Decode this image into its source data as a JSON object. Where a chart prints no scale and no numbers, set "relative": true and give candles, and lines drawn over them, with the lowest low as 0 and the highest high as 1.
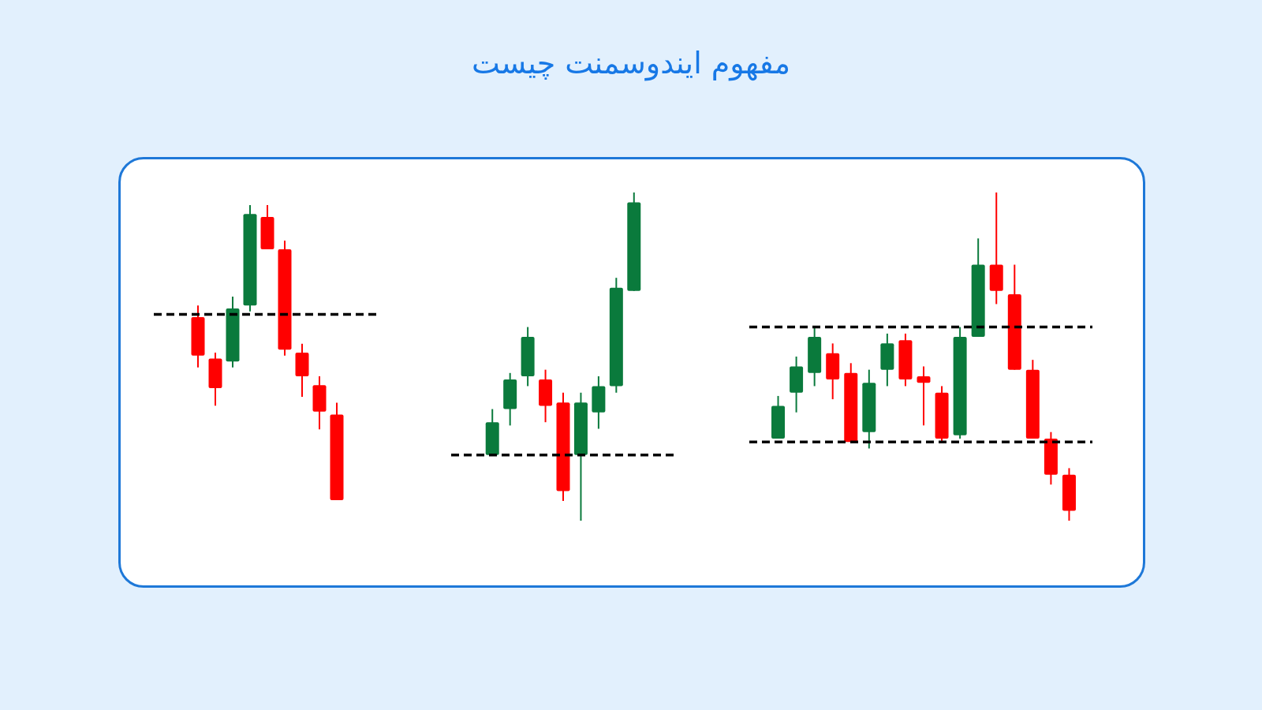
{
  "chart_data": [
    {
      "type": "other",
      "title": "مفهوم ایندوسمنت چیست"
    },
    {
      "type": "candlestick",
      "relative": true,
      "categories": [
        null,
        null,
        null,
        null,
        null,
        null,
        null,
        null,
        null
      ],
      "ohlc": [
        [
          0.62,
          0.66,
          0.45,
          0.49
        ],
        [
          0.48,
          0.5,
          0.32,
          0.38
        ],
        [
          0.47,
          0.69,
          0.45,
          0.65
        ],
        [
          0.66,
          1,
          0.64,
          0.97
        ],
        [
          0.96,
          1,
          0.85,
          0.85
        ],
        [
          0.85,
          0.88,
          0.49,
          0.51
        ],
        [
          0.5,
          0.53,
          0.35,
          0.42
        ],
        [
          0.39,
          0.42,
          0.24,
          0.3
        ],
        [
          0.29,
          0.33,
          0,
          0
        ]
      ],
      "colors": [
        "#ff0000",
        "#ff0000",
        "#0a7a3c",
        "#0a7a3c",
        "#ff0000",
        "#ff0000",
        "#ff0000",
        "#ff0000",
        "#ff0000"
      ],
      "ref_lines": [
        {
          "axis": "y",
          "value": 0.63,
          "color": "#000000",
          "line_style": "dashed"
        }
      ]
    },
    {
      "type": "candlestick",
      "relative": true,
      "categories": [
        null,
        null,
        null,
        null,
        null,
        null,
        null,
        null,
        null
      ],
      "ohlc": [
        [
          0.2,
          0.34,
          0.2,
          0.3
        ],
        [
          0.34,
          0.45,
          0.29,
          0.43
        ],
        [
          0.44,
          0.59,
          0.41,
          0.56
        ],
        [
          0.43,
          0.46,
          0.3,
          0.35
        ],
        [
          0.36,
          0.39,
          0.06,
          0.09
        ],
        [
          0.2,
          0.39,
          0,
          0.36
        ],
        [
          0.33,
          0.44,
          0.28,
          0.41
        ],
        [
          0.41,
          0.74,
          0.39,
          0.71
        ],
        [
          0.7,
          1,
          0.7,
          0.97
        ]
      ],
      "colors": [
        "#0a7a3c",
        "#0a7a3c",
        "#0a7a3c",
        "#ff0000",
        "#ff0000",
        "#0a7a3c",
        "#0a7a3c",
        "#0a7a3c",
        "#0a7a3c"
      ],
      "ref_lines": [
        {
          "axis": "y",
          "value": 0.2,
          "color": "#000000",
          "line_style": "dashed"
        }
      ]
    },
    {
      "type": "candlestick",
      "relative": true,
      "categories": [
        null,
        null,
        null,
        null,
        null,
        null,
        null,
        null,
        null,
        null,
        null,
        null,
        null,
        null,
        null,
        null,
        null
      ],
      "ohlc": [
        [
          0.25,
          0.38,
          0.25,
          0.35
        ],
        [
          0.39,
          0.5,
          0.33,
          0.47
        ],
        [
          0.45,
          0.59,
          0.41,
          0.56
        ],
        [
          0.51,
          0.54,
          0.37,
          0.43
        ],
        [
          0.45,
          0.48,
          0.24,
          0.24
        ],
        [
          0.27,
          0.46,
          0.22,
          0.42
        ],
        [
          0.46,
          0.57,
          0.41,
          0.54
        ],
        [
          0.55,
          0.57,
          0.41,
          0.43
        ],
        [
          0.44,
          0.47,
          0.29,
          0.42
        ],
        [
          0.39,
          0.41,
          0.24,
          0.25
        ],
        [
          0.26,
          0.59,
          0.25,
          0.56
        ],
        [
          0.56,
          0.86,
          0.56,
          0.78
        ],
        [
          0.78,
          1,
          0.66,
          0.7
        ],
        [
          0.69,
          0.78,
          0.46,
          0.46
        ],
        [
          0.46,
          0.49,
          0.25,
          0.25
        ],
        [
          0.25,
          0.27,
          0.11,
          0.14
        ],
        [
          0.14,
          0.16,
          0,
          0.03
        ]
      ],
      "colors": [
        "#0a7a3c",
        "#0a7a3c",
        "#0a7a3c",
        "#ff0000",
        "#ff0000",
        "#0a7a3c",
        "#0a7a3c",
        "#ff0000",
        "#ff0000",
        "#ff0000",
        "#0a7a3c",
        "#0a7a3c",
        "#ff0000",
        "#ff0000",
        "#ff0000",
        "#ff0000",
        "#ff0000"
      ],
      "ref_lines": [
        {
          "axis": "y",
          "value": 0.59,
          "color": "#000000",
          "line_style": "dashed"
        },
        {
          "axis": "y",
          "value": 0.24,
          "color": "#000000",
          "line_style": "dashed"
        }
      ]
    }
  ]
}
